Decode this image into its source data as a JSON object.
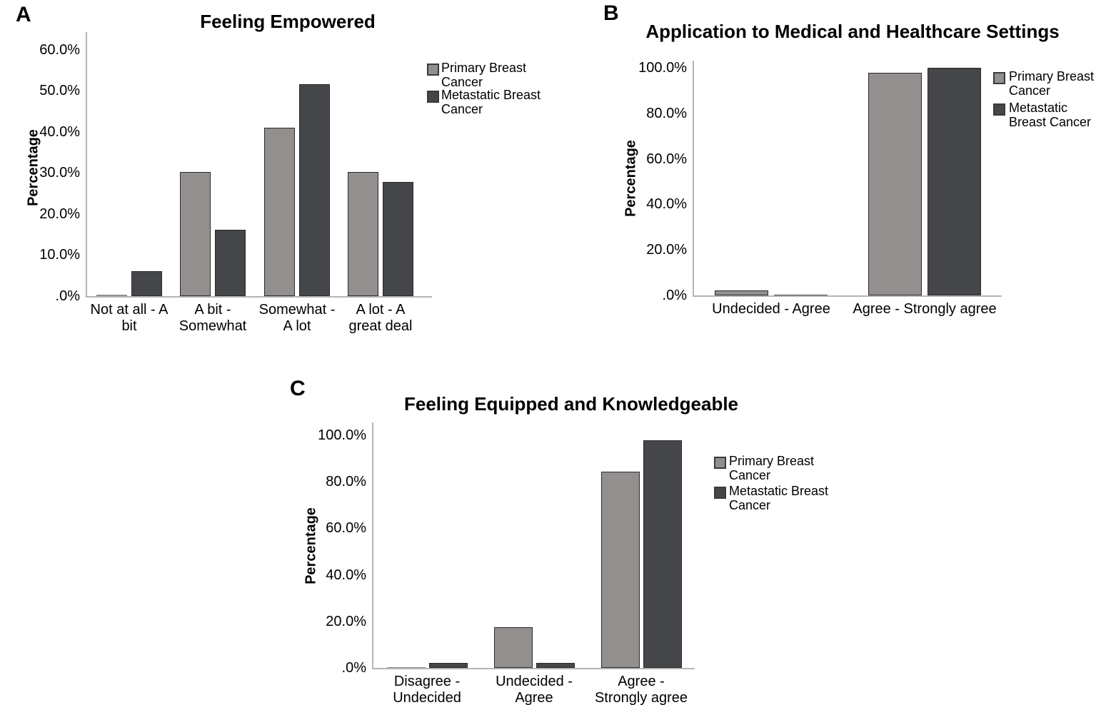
{
  "figure": {
    "panels": [
      {
        "label": "A"
      },
      {
        "label": "B"
      },
      {
        "label": "C"
      }
    ]
  },
  "colors": {
    "primary_series": "#928F8E",
    "metastatic_series": "#454649",
    "bar_border": "#2B2B2B",
    "axis_line": "#B5B5B5",
    "text": "#000000",
    "background": "#FFFFFF"
  },
  "chart_data": [
    {
      "type": "bar",
      "title": "Feeling Empowered",
      "ylabel": "Percentage",
      "ylim": [
        0,
        60
      ],
      "grid": false,
      "legend_position": "right",
      "ytick_labels": [
        ".0%",
        "10.0%",
        "20.0%",
        "30.0%",
        "40.0%",
        "50.0%",
        "60.0%"
      ],
      "ytick_values": [
        0,
        10,
        20,
        30,
        40,
        50,
        60
      ],
      "categories": [
        "Not at all - A bit",
        "A bit - Somewhat",
        "Somewhat - A lot",
        "A lot - A great deal"
      ],
      "category_lines": [
        [
          "Not at all - A",
          "bit"
        ],
        [
          "A bit -",
          "Somewhat"
        ],
        [
          "Somewhat -",
          "A lot"
        ],
        [
          "A lot - A",
          "great deal"
        ]
      ],
      "series": [
        {
          "name": "Primary Breast Cancer",
          "legend_lines": [
            "Primary Breast",
            "Cancer"
          ],
          "color": "#928F8E",
          "values": [
            0.3,
            30.3,
            41.0,
            30.3
          ]
        },
        {
          "name": "Metastatic Breast Cancer",
          "legend_lines": [
            "Metastatic Breast",
            "Cancer"
          ],
          "color": "#454649",
          "values": [
            6.0,
            16.1,
            51.6,
            27.9
          ]
        }
      ]
    },
    {
      "type": "bar",
      "title": "Application to Medical and Healthcare Settings",
      "ylabel": "Percentage",
      "ylim": [
        0,
        100
      ],
      "grid": false,
      "legend_position": "right",
      "ytick_labels": [
        ".0%",
        "20.0%",
        "40.0%",
        "60.0%",
        "80.0%",
        "100.0%"
      ],
      "ytick_values": [
        0,
        20,
        40,
        60,
        80,
        100
      ],
      "categories": [
        "Undecided - Agree",
        "Agree - Strongly agree"
      ],
      "category_lines": [
        [
          "Undecided - Agree"
        ],
        [
          "Agree - Strongly agree"
        ]
      ],
      "series": [
        {
          "name": "Primary Breast Cancer",
          "legend_lines": [
            "Primary Breast",
            "Cancer"
          ],
          "color": "#928F8E",
          "values": [
            2.1,
            97.9
          ]
        },
        {
          "name": "Metastatic Breast Cancer",
          "legend_lines": [
            "Metastatic",
            "Breast Cancer"
          ],
          "color": "#454649",
          "values": [
            0.3,
            100.0
          ]
        }
      ]
    },
    {
      "type": "bar",
      "title": "Feeling Equipped and Knowledgeable",
      "ylabel": "Percentage",
      "ylim": [
        0,
        100
      ],
      "grid": false,
      "legend_position": "right",
      "ytick_labels": [
        ".0%",
        "20.0%",
        "40.0%",
        "60.0%",
        "80.0%",
        "100.0%"
      ],
      "ytick_values": [
        0,
        20,
        40,
        60,
        80,
        100
      ],
      "categories": [
        "Disagree - Undecided",
        "Undecided - Agree",
        "Agree - Strongly agree"
      ],
      "category_lines": [
        [
          "Disagree -",
          "Undecided"
        ],
        [
          "Undecided -",
          "Agree"
        ],
        [
          "Agree -",
          "Strongly agree"
        ]
      ],
      "series": [
        {
          "name": "Primary Breast Cancer",
          "legend_lines": [
            "Primary Breast",
            "Cancer"
          ],
          "color": "#928F8E",
          "values": [
            0.3,
            17.5,
            84.4
          ]
        },
        {
          "name": "Metastatic Breast Cancer",
          "legend_lines": [
            "Metastatic Breast",
            "Cancer"
          ],
          "color": "#454649",
          "values": [
            2.1,
            2.1,
            97.9
          ]
        }
      ]
    }
  ]
}
